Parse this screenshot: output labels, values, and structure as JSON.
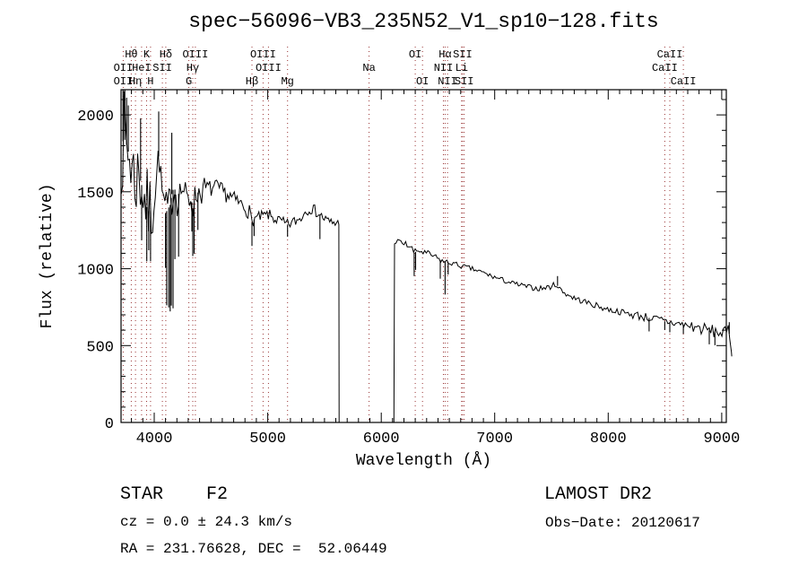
{
  "chart_data": {
    "type": "line",
    "title": "spec−56096−VB3_235N52_V1_sp10−128.fits",
    "xlabel": "Wavelength (Å)",
    "ylabel": "Flux (relative)",
    "xlim": [
      3708,
      9040
    ],
    "ylim": [
      0,
      2164
    ],
    "x_major_ticks": [
      4000,
      5000,
      6000,
      7000,
      8000,
      9000
    ],
    "x_minor_step": 100,
    "y_major_ticks": [
      0,
      500,
      1000,
      1500,
      2000
    ],
    "y_minor_step": 100,
    "grid": false,
    "legend": false,
    "trace_color": "#000000",
    "marker_line_color": "#993333",
    "spectral_lines": [
      3727,
      3798,
      3835,
      3889,
      3933,
      3968,
      4072,
      4102,
      4305,
      4340,
      4363,
      4861,
      4959,
      5007,
      5175,
      5893,
      6300,
      6364,
      6548,
      6563,
      6584,
      6708,
      6717,
      6731,
      8498,
      8542,
      8662
    ],
    "line_label_rows": [
      [
        {
          "text": "Hθ",
          "wl": 3798
        },
        {
          "text": "K",
          "wl": 3933
        },
        {
          "text": "Hδ",
          "wl": 4102
        },
        {
          "text": "OIII",
          "wl": 4363
        },
        {
          "text": "OIII",
          "wl": 4959
        },
        {
          "text": "OI",
          "wl": 6300
        },
        {
          "text": "Hα",
          "wl": 6563
        },
        {
          "text": "SII",
          "wl": 6717
        },
        {
          "text": "CaII",
          "wl": 8542
        }
      ],
      [
        {
          "text": "OII",
          "wl": 3727
        },
        {
          "text": "HeI",
          "wl": 3889
        },
        {
          "text": "SII",
          "wl": 4072
        },
        {
          "text": "Hγ",
          "wl": 4340
        },
        {
          "text": "OIII",
          "wl": 5007
        },
        {
          "text": "Na",
          "wl": 5893
        },
        {
          "text": "NII",
          "wl": 6548
        },
        {
          "text": "Li",
          "wl": 6708
        },
        {
          "text": "CaII",
          "wl": 8498
        }
      ],
      [
        {
          "text": "OII",
          "wl": 3727
        },
        {
          "text": "Hη",
          "wl": 3835
        },
        {
          "text": "H",
          "wl": 3968
        },
        {
          "text": "G",
          "wl": 4305
        },
        {
          "text": "Hβ",
          "wl": 4861
        },
        {
          "text": "Mg",
          "wl": 5175
        },
        {
          "text": "OI",
          "wl": 6364
        },
        {
          "text": "NII",
          "wl": 6584
        },
        {
          "text": "SII",
          "wl": 6731
        },
        {
          "text": "CaII",
          "wl": 8662
        }
      ]
    ],
    "spectrum": {
      "noise_seed": 7,
      "gap_zero": [
        5629,
        6112
      ],
      "segments": [
        {
          "range": [
            3710,
            5627
          ],
          "step": 12,
          "anchors": [
            [
              3710,
              1800
            ],
            [
              3735,
              1850
            ],
            [
              3760,
              1800
            ],
            [
              3785,
              1720
            ],
            [
              3810,
              1650
            ],
            [
              3835,
              1570
            ],
            [
              3860,
              1620
            ],
            [
              3885,
              1560
            ],
            [
              3910,
              1480
            ],
            [
              3935,
              1400
            ],
            [
              3960,
              1360
            ],
            [
              3985,
              1420
            ],
            [
              4010,
              1520
            ],
            [
              4035,
              1700
            ],
            [
              4045,
              1760
            ],
            [
              4060,
              1520
            ],
            [
              4080,
              1460
            ],
            [
              4100,
              1360
            ],
            [
              4120,
              1390
            ],
            [
              4140,
              1410
            ],
            [
              4160,
              1510
            ],
            [
              4180,
              1520
            ],
            [
              4205,
              1470
            ],
            [
              4230,
              1510
            ],
            [
              4255,
              1520
            ],
            [
              4280,
              1470
            ],
            [
              4305,
              1430
            ],
            [
              4325,
              1470
            ],
            [
              4340,
              1390
            ],
            [
              4360,
              1465
            ],
            [
              4385,
              1495
            ],
            [
              4415,
              1505
            ],
            [
              4445,
              1515
            ],
            [
              4475,
              1530
            ],
            [
              4505,
              1515
            ],
            [
              4535,
              1530
            ],
            [
              4565,
              1520
            ],
            [
              4595,
              1505
            ],
            [
              4625,
              1490
            ],
            [
              4655,
              1475
            ],
            [
              4685,
              1460
            ],
            [
              4715,
              1442
            ],
            [
              4745,
              1430
            ],
            [
              4775,
              1412
            ],
            [
              4805,
              1400
            ],
            [
              4835,
              1372
            ],
            [
              4861,
              1300
            ],
            [
              4890,
              1330
            ],
            [
              4920,
              1332
            ],
            [
              4950,
              1340
            ],
            [
              4980,
              1345
            ],
            [
              5010,
              1350
            ],
            [
              5040,
              1332
            ],
            [
              5070,
              1322
            ],
            [
              5100,
              1312
            ],
            [
              5130,
              1302
            ],
            [
              5160,
              1285
            ],
            [
              5190,
              1290
            ],
            [
              5220,
              1300
            ],
            [
              5250,
              1312
            ],
            [
              5280,
              1322
            ],
            [
              5310,
              1350
            ],
            [
              5340,
              1380
            ],
            [
              5370,
              1395
            ],
            [
              5400,
              1385
            ],
            [
              5430,
              1370
            ],
            [
              5460,
              1350
            ],
            [
              5490,
              1332
            ],
            [
              5520,
              1312
            ],
            [
              5550,
              1300
            ],
            [
              5580,
              1300
            ],
            [
              5610,
              1295
            ],
            [
              5627,
              1288
            ]
          ],
          "noise": [
            [
              3708,
              3770,
              320
            ],
            [
              3770,
              3990,
              265
            ],
            [
              3990,
              4210,
              140
            ],
            [
              4210,
              4450,
              90
            ],
            [
              4450,
              4861,
              55
            ],
            [
              4861,
              5640,
              38
            ]
          ]
        },
        {
          "range": [
            6117,
            9088
          ],
          "step": 14,
          "anchors": [
            [
              6117,
              1180
            ],
            [
              6160,
              1172
            ],
            [
              6210,
              1160
            ],
            [
              6260,
              1142
            ],
            [
              6290,
              1105
            ],
            [
              6330,
              1118
            ],
            [
              6380,
              1102
            ],
            [
              6430,
              1092
            ],
            [
              6480,
              1072
            ],
            [
              6530,
              1052
            ],
            [
              6580,
              1040
            ],
            [
              6630,
              1035
            ],
            [
              6680,
              1022
            ],
            [
              6730,
              1012
            ],
            [
              6790,
              1000
            ],
            [
              6850,
              986
            ],
            [
              6910,
              970
            ],
            [
              6970,
              952
            ],
            [
              7030,
              936
            ],
            [
              7090,
              921
            ],
            [
              7150,
              906
            ],
            [
              7210,
              895
            ],
            [
              7270,
              885
            ],
            [
              7330,
              876
            ],
            [
              7390,
              870
            ],
            [
              7450,
              876
            ],
            [
              7510,
              886
            ],
            [
              7540,
              906
            ],
            [
              7565,
              872
            ],
            [
              7610,
              846
            ],
            [
              7670,
              820
            ],
            [
              7730,
              800
            ],
            [
              7790,
              786
            ],
            [
              7850,
              770
            ],
            [
              7910,
              756
            ],
            [
              7970,
              741
            ],
            [
              8030,
              730
            ],
            [
              8090,
              721
            ],
            [
              8150,
              712
            ],
            [
              8210,
              703
            ],
            [
              8270,
              695
            ],
            [
              8330,
              685
            ],
            [
              8390,
              675
            ],
            [
              8450,
              666
            ],
            [
              8510,
              656
            ],
            [
              8570,
              648
            ],
            [
              8630,
              640
            ],
            [
              8690,
              632
            ],
            [
              8750,
              622
            ],
            [
              8810,
              612
            ],
            [
              8870,
              602
            ],
            [
              8930,
              592
            ],
            [
              8990,
              585
            ],
            [
              9030,
              580
            ],
            [
              9055,
              598
            ],
            [
              9075,
              560
            ],
            [
              9088,
              430
            ]
          ],
          "noise": [
            [
              6112,
              6600,
              22
            ],
            [
              6600,
              7400,
              17
            ],
            [
              7400,
              8200,
              20
            ],
            [
              8200,
              8700,
              30
            ],
            [
              8700,
              9092,
              42
            ]
          ]
        }
      ],
      "spikes_down": [
        [
          3890,
          1185
        ],
        [
          3935,
          1048
        ],
        [
          3952,
          1120
        ],
        [
          3968,
          1048
        ],
        [
          4100,
          1005
        ],
        [
          4110,
          762
        ],
        [
          4128,
          748
        ],
        [
          4141,
          722
        ],
        [
          4150,
          760
        ],
        [
          4166,
          742
        ],
        [
          4183,
          1062
        ],
        [
          4215,
          1078
        ],
        [
          4332,
          1242
        ],
        [
          4340,
          1082
        ],
        [
          4352,
          1098
        ],
        [
          4385,
          1252
        ],
        [
          4861,
          1148
        ],
        [
          4880,
          1212
        ],
        [
          5175,
          1208
        ],
        [
          5460,
          1192
        ],
        [
          6290,
          952
        ],
        [
          6303,
          992
        ],
        [
          6520,
          935
        ],
        [
          6563,
          832
        ],
        [
          6590,
          962
        ],
        [
          8360,
          592
        ],
        [
          8498,
          602
        ],
        [
          8542,
          586
        ],
        [
          8662,
          576
        ],
        [
          8890,
          508
        ],
        [
          8940,
          502
        ]
      ],
      "spikes_up": [
        [
          3725,
          2162
        ],
        [
          3741,
          2162
        ],
        [
          3757,
          2112
        ],
        [
          3772,
          2062
        ],
        [
          3880,
          1978
        ],
        [
          4040,
          2022
        ],
        [
          4155,
          1884
        ],
        [
          7553,
          952
        ],
        [
          9066,
          652
        ]
      ]
    }
  },
  "footer": {
    "class_line": "STAR    F2",
    "cz_line": "cz = 0.0 ± 24.3 km/s",
    "radec_line": "RA = 231.76628, DEC =  52.06449",
    "survey": "LAMOST DR2",
    "obsdate_line": "Obs−Date: 20120617"
  }
}
